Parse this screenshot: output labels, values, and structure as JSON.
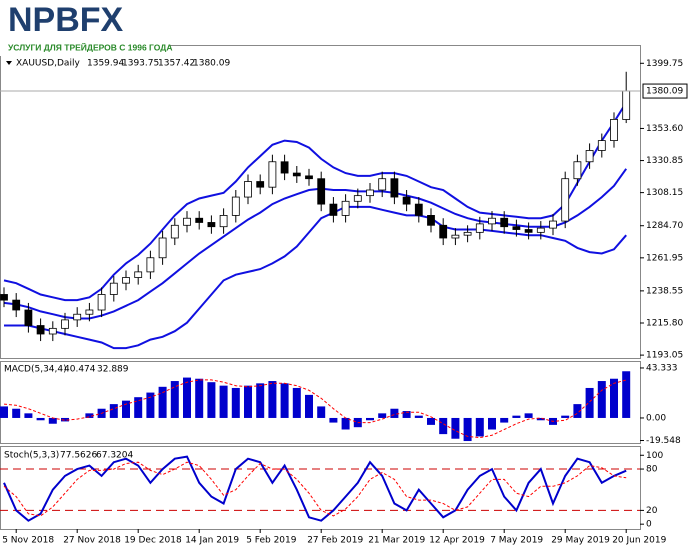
{
  "header": {
    "logo": "NPBFX",
    "tagline": "УСЛУГИ ДЛЯ ТРЕЙДЕРОВ С 1996 ГОДА"
  },
  "chart_data": [
    {
      "type": "candlestick",
      "title": "XAUUSD,Daily",
      "up_color": "#ffffff",
      "down_color": "#000000",
      "outline_color": "#000000",
      "open": [
        1236,
        1232,
        1225,
        1214,
        1208,
        1212,
        1218,
        1222,
        1225,
        1236,
        1244,
        1248,
        1252,
        1262,
        1276,
        1285,
        1290,
        1287,
        1284,
        1292,
        1305,
        1316,
        1312,
        1330,
        1322,
        1320,
        1318,
        1300,
        1292,
        1302,
        1306,
        1310,
        1318,
        1305,
        1300,
        1292,
        1285,
        1276,
        1278,
        1280,
        1286,
        1290,
        1284,
        1282,
        1280,
        1283,
        1288,
        1318,
        1330,
        1338,
        1345,
        1359.94
      ],
      "high": [
        1241,
        1237,
        1230,
        1219,
        1217,
        1223,
        1227,
        1230,
        1241,
        1249,
        1253,
        1257,
        1267,
        1281,
        1290,
        1295,
        1295,
        1292,
        1297,
        1310,
        1321,
        1321,
        1335,
        1335,
        1327,
        1325,
        1323,
        1305,
        1307,
        1311,
        1315,
        1323,
        1323,
        1310,
        1305,
        1297,
        1290,
        1283,
        1285,
        1291,
        1295,
        1295,
        1289,
        1287,
        1288,
        1293,
        1323,
        1335,
        1343,
        1350,
        1365,
        1393.75
      ],
      "low": [
        1227,
        1220,
        1209,
        1203,
        1203,
        1207,
        1213,
        1217,
        1220,
        1231,
        1239,
        1243,
        1247,
        1257,
        1271,
        1280,
        1282,
        1279,
        1279,
        1287,
        1300,
        1307,
        1307,
        1317,
        1315,
        1313,
        1295,
        1287,
        1287,
        1297,
        1301,
        1305,
        1300,
        1295,
        1287,
        1280,
        1271,
        1271,
        1273,
        1275,
        1281,
        1279,
        1277,
        1275,
        1275,
        1278,
        1283,
        1313,
        1325,
        1333,
        1340,
        1357.42
      ],
      "close": [
        1232,
        1225,
        1214,
        1208,
        1212,
        1218,
        1222,
        1225,
        1236,
        1244,
        1248,
        1252,
        1262,
        1276,
        1285,
        1290,
        1287,
        1284,
        1292,
        1305,
        1316,
        1312,
        1330,
        1322,
        1320,
        1318,
        1300,
        1292,
        1302,
        1306,
        1310,
        1318,
        1305,
        1300,
        1292,
        1285,
        1276,
        1278,
        1280,
        1286,
        1290,
        1284,
        1282,
        1280,
        1283,
        1288,
        1318,
        1330,
        1338,
        1345,
        1360,
        1380.09
      ],
      "bands": {
        "color": "#1010e0",
        "upper": [
          1246,
          1244,
          1240,
          1236,
          1234,
          1232,
          1232,
          1234,
          1240,
          1250,
          1258,
          1264,
          1272,
          1282,
          1292,
          1300,
          1304,
          1306,
          1308,
          1316,
          1326,
          1334,
          1342,
          1345,
          1344,
          1340,
          1332,
          1326,
          1322,
          1320,
          1320,
          1322,
          1322,
          1320,
          1316,
          1312,
          1310,
          1304,
          1298,
          1294,
          1293,
          1292,
          1291,
          1290,
          1290,
          1292,
          1300,
          1315,
          1330,
          1345,
          1358,
          1372
        ],
        "middle": [
          1230,
          1229,
          1227,
          1224,
          1222,
          1220,
          1219,
          1219,
          1221,
          1224,
          1228,
          1232,
          1238,
          1244,
          1251,
          1258,
          1265,
          1271,
          1277,
          1283,
          1289,
          1294,
          1300,
          1304,
          1307,
          1310,
          1311,
          1310,
          1310,
          1309,
          1309,
          1309,
          1308,
          1306,
          1304,
          1301,
          1297,
          1293,
          1290,
          1288,
          1287,
          1286,
          1285,
          1284,
          1284,
          1284,
          1287,
          1292,
          1298,
          1305,
          1313,
          1325
        ],
        "lower": [
          1214,
          1214,
          1214,
          1212,
          1210,
          1208,
          1206,
          1204,
          1202,
          1198,
          1198,
          1200,
          1204,
          1206,
          1210,
          1216,
          1226,
          1236,
          1246,
          1250,
          1252,
          1254,
          1258,
          1263,
          1270,
          1280,
          1290,
          1294,
          1298,
          1298,
          1298,
          1296,
          1294,
          1292,
          1292,
          1290,
          1284,
          1282,
          1282,
          1282,
          1281,
          1280,
          1279,
          1278,
          1278,
          1276,
          1274,
          1269,
          1266,
          1265,
          1268,
          1278
        ]
      },
      "ylim": [
        1191,
        1412
      ],
      "yticks": [
        1399.75,
        {
          "value": 1353.6,
          "label": "1353.60"
        },
        1330.85,
        1308.15,
        {
          "value": 1284.7,
          "label": "1284.70"
        },
        1261.95,
        1238.55,
        {
          "value": 1215.8,
          "label": "1215.80"
        },
        1193.05
      ]
    },
    {
      "type": "bar",
      "title": "MACD(5,34,4)",
      "color": "#0000cc",
      "signal_color": "#ff0000",
      "values": [
        10,
        8,
        4,
        -2,
        -5,
        -3,
        0,
        4,
        8,
        12,
        15,
        18,
        22,
        27,
        32,
        35,
        34,
        31,
        28,
        26,
        28,
        30,
        32,
        30,
        26,
        20,
        10,
        -4,
        -10,
        -8,
        -2,
        4,
        8,
        6,
        2,
        -6,
        -14,
        -18,
        -20,
        -16,
        -10,
        -4,
        2,
        4,
        -2,
        -6,
        2,
        12,
        26,
        32,
        34,
        40.474
      ],
      "signal": [
        12,
        11,
        8,
        4,
        0,
        -2,
        -1,
        1,
        4,
        8,
        12,
        15,
        18,
        22,
        27,
        31,
        33,
        33,
        31,
        28,
        27,
        28,
        30,
        30,
        28,
        24,
        17,
        8,
        0,
        -4,
        -4,
        -1,
        3,
        5,
        5,
        1,
        -5,
        -11,
        -16,
        -17,
        -15,
        -10,
        -5,
        -1,
        0,
        -3,
        -2,
        4,
        14,
        24,
        30,
        32.889
      ],
      "ylim": [
        -21.7,
        48.5
      ],
      "yticks": [
        43.333,
        {
          "value": 0,
          "label": "0.00"
        },
        -19.548
      ]
    },
    {
      "type": "line",
      "title": "Stoch(5,3,3)",
      "categories": [
        null,
        "5 Nov 2018",
        null,
        null,
        null,
        null,
        "27 Nov 2018",
        null,
        null,
        null,
        null,
        "19 Dec 2018",
        null,
        null,
        null,
        null,
        "14 Jan 2019",
        null,
        null,
        null,
        null,
        "5 Feb 2019",
        null,
        null,
        null,
        null,
        "27 Feb 2019",
        null,
        null,
        null,
        null,
        "21 Mar 2019",
        null,
        null,
        null,
        null,
        "12 Apr 2019",
        null,
        null,
        null,
        null,
        "7 May 2019",
        null,
        null,
        null,
        null,
        "29 May 2019",
        null,
        null,
        null,
        null,
        "20 Jun 2019"
      ],
      "series": [
        {
          "color": "#0000cc",
          "values": [
            60,
            20,
            5,
            15,
            50,
            70,
            80,
            85,
            70,
            90,
            95,
            85,
            60,
            80,
            95,
            98,
            60,
            40,
            30,
            80,
            95,
            90,
            60,
            85,
            50,
            10,
            5,
            20,
            40,
            60,
            90,
            70,
            30,
            20,
            50,
            30,
            10,
            20,
            50,
            70,
            80,
            40,
            20,
            60,
            80,
            30,
            70,
            95,
            90,
            60,
            70,
            77.5626
          ]
        },
        {
          "color": "#ff0000",
          "dashed": true,
          "values": [
            55,
            40,
            15,
            12,
            25,
            45,
            65,
            78,
            78,
            80,
            88,
            90,
            78,
            72,
            80,
            90,
            85,
            65,
            42,
            50,
            70,
            88,
            80,
            80,
            65,
            45,
            20,
            12,
            22,
            40,
            65,
            75,
            65,
            40,
            35,
            35,
            30,
            20,
            25,
            45,
            65,
            65,
            45,
            40,
            55,
            55,
            60,
            70,
            85,
            82,
            70,
            67.3204
          ]
        }
      ],
      "levels": [
        80,
        20
      ],
      "level_color": "#cc0000",
      "ylim": [
        -7,
        112
      ],
      "yticks": [
        100,
        80,
        20,
        0
      ]
    }
  ]
}
